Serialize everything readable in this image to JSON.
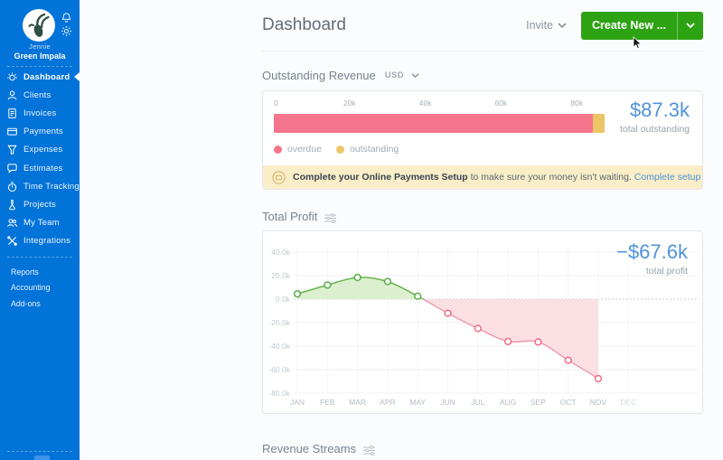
{
  "sidebar": {
    "user": {
      "name": "Jennie",
      "company": "Green Impala"
    },
    "items": [
      {
        "label": "Dashboard",
        "icon": "dashboard-icon",
        "active": true
      },
      {
        "label": "Clients",
        "icon": "clients-icon"
      },
      {
        "label": "Invoices",
        "icon": "invoices-icon"
      },
      {
        "label": "Payments",
        "icon": "payments-icon"
      },
      {
        "label": "Expenses",
        "icon": "expenses-icon"
      },
      {
        "label": "Estimates",
        "icon": "estimates-icon"
      },
      {
        "label": "Time Tracking",
        "icon": "time-tracking-icon"
      },
      {
        "label": "Projects",
        "icon": "projects-icon"
      },
      {
        "label": "My Team",
        "icon": "my-team-icon"
      },
      {
        "label": "Integrations",
        "icon": "integrations-icon"
      }
    ],
    "secondary_items": [
      {
        "label": "Reports"
      },
      {
        "label": "Accounting"
      },
      {
        "label": "Add-ons"
      }
    ]
  },
  "header": {
    "title": "Dashboard",
    "invite_label": "Invite",
    "create_new_label": "Create New ..."
  },
  "outstanding_revenue": {
    "title": "Outstanding Revenue",
    "currency": "USD",
    "total": "$87.3k",
    "total_caption": "total outstanding",
    "banner": {
      "bold": "Complete your Online Payments Setup",
      "text": " to make sure your money isn't waiting. ",
      "link": "Complete setup"
    }
  },
  "total_profit": {
    "title": "Total Profit",
    "total": "−$67.6k",
    "total_caption": "total profit"
  },
  "revenue_streams": {
    "title": "Revenue Streams"
  },
  "colors": {
    "sidebar_blue": "#0173d9",
    "button_green": "#2da313",
    "accent_blue": "#4f93da",
    "overdue_pink": "#f4758c",
    "outstanding_yellow": "#ecc567",
    "profit_positive_fill": "#dcefcf",
    "profit_positive_line": "#67b54e",
    "profit_negative_fill": "#fbdfe3",
    "profit_negative_line": "#ee8ba0",
    "banner_bg": "#f9eec8"
  },
  "chart_data": [
    {
      "type": "bar",
      "orientation": "horizontal",
      "stacked": true,
      "title": "Outstanding Revenue (USD)",
      "series": [
        {
          "name": "overdue",
          "value": 84.2,
          "color": "#f4758c"
        },
        {
          "name": "outstanding",
          "value": 3.1,
          "color": "#ecc567"
        }
      ],
      "unit": "thousand USD",
      "tick_labels": [
        "0",
        "20k",
        "40k",
        "60k",
        "80k"
      ],
      "tick_values": [
        0,
        20,
        40,
        60,
        80
      ],
      "axis_max": 105,
      "total": 87.3,
      "total_label": "$87.3k",
      "legend": [
        "overdue",
        "outstanding"
      ],
      "legend_position": "bottom-left"
    },
    {
      "type": "area",
      "title": "Total Profit",
      "categories": [
        "JAN",
        "FEB",
        "MAR",
        "APR",
        "MAY",
        "JUN",
        "JUL",
        "AUG",
        "SEP",
        "OCT",
        "NOV",
        "DEC"
      ],
      "values": [
        4.5,
        12,
        18.5,
        15,
        2.5,
        -12,
        -25,
        -36,
        -36.5,
        -52,
        -67.6,
        null
      ],
      "unit": "thousand USD",
      "ylim": [
        -80,
        40
      ],
      "ytick_labels": [
        "40.0k",
        "20.0k",
        "0.0k",
        "-20.0k",
        "-40.0k",
        "-60.0k",
        "-80.0k"
      ],
      "ytick_values": [
        40,
        20,
        0,
        -20,
        -40,
        -60,
        -80
      ],
      "grid": true,
      "zero_line": "dotted",
      "total_label": "−$67.6k"
    }
  ]
}
